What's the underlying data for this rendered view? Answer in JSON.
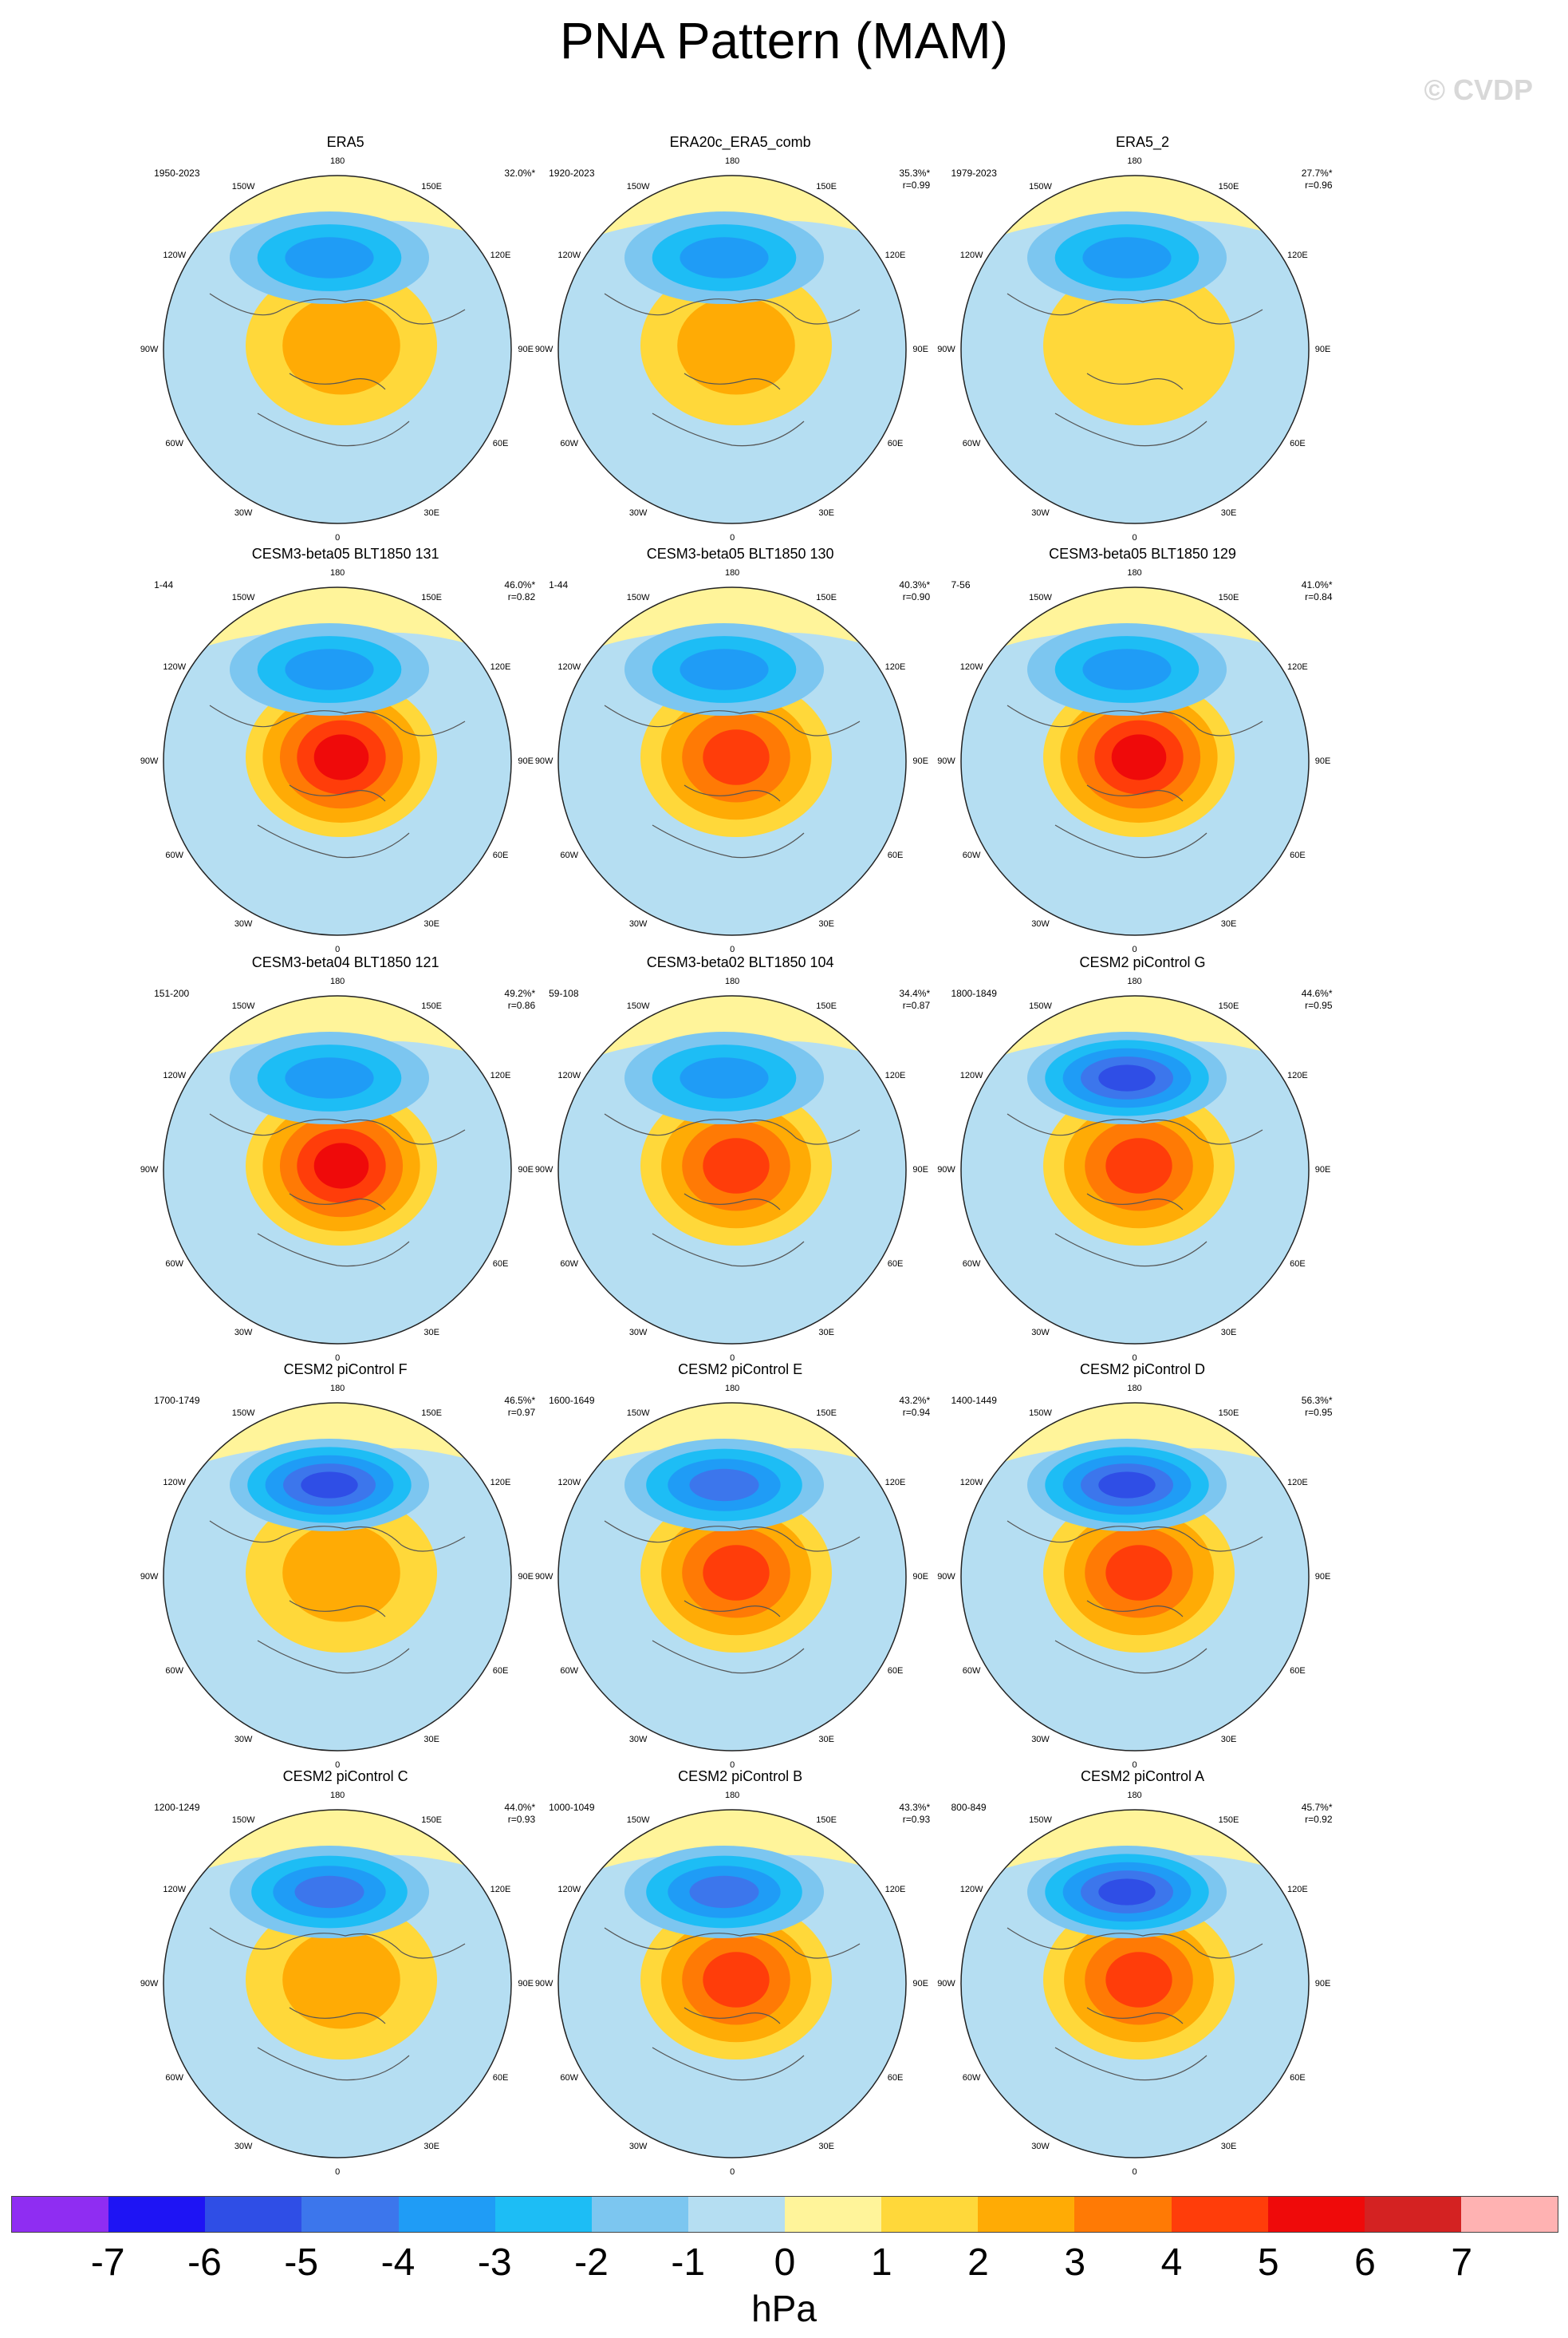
{
  "title": "PNA Pattern (MAM)",
  "watermark": "© CVDP",
  "chart_data": {
    "type": "heatmap",
    "title": "PNA Pattern (MAM)",
    "projection": "north polar stereographic",
    "longitude_labels": [
      "180",
      "150E",
      "120E",
      "90E",
      "60E",
      "30E",
      "0",
      "30W",
      "60W",
      "90W",
      "120W",
      "150W"
    ],
    "panels": [
      {
        "title": "ERA5",
        "period": "1950-2023",
        "pct": "32.0%*",
        "r": "",
        "neg_center": -3.8,
        "pos_center": 2.1
      },
      {
        "title": "ERA20c_ERA5_comb",
        "period": "1920-2023",
        "pct": "35.3%*",
        "r": "r=0.99",
        "neg_center": -3.6,
        "pos_center": 2.4
      },
      {
        "title": "ERA5_2",
        "period": "1979-2023",
        "pct": "27.7%*",
        "r": "r=0.96",
        "neg_center": -3.7,
        "pos_center": 1.8
      },
      {
        "title": "CESM3-beta05 BLT1850 131",
        "period": "1-44",
        "pct": "46.0%*",
        "r": "r=0.82",
        "neg_center": -3.9,
        "pos_center": 5.2
      },
      {
        "title": "CESM3-beta05 BLT1850 130",
        "period": "1-44",
        "pct": "40.3%*",
        "r": "r=0.90",
        "neg_center": -3.6,
        "pos_center": 4.4
      },
      {
        "title": "CESM3-beta05 BLT1850 129",
        "period": "7-56",
        "pct": "41.0%*",
        "r": "r=0.84",
        "neg_center": -3.5,
        "pos_center": 5.3
      },
      {
        "title": "CESM3-beta04 BLT1850 121",
        "period": "151-200",
        "pct": "49.2%*",
        "r": "r=0.86",
        "neg_center": -3.9,
        "pos_center": 5.6
      },
      {
        "title": "CESM3-beta02 BLT1850 104",
        "period": "59-108",
        "pct": "34.4%*",
        "r": "r=0.87",
        "neg_center": -3.4,
        "pos_center": 4.3
      },
      {
        "title": "CESM2 piControl G",
        "period": "1800-1849",
        "pct": "44.6%*",
        "r": "r=0.95",
        "neg_center": -5.2,
        "pos_center": 4.3
      },
      {
        "title": "CESM2 piControl F",
        "period": "1700-1749",
        "pct": "46.5%*",
        "r": "r=0.97",
        "neg_center": -5.2,
        "pos_center": 2.8
      },
      {
        "title": "CESM2 piControl E",
        "period": "1600-1649",
        "pct": "43.2%*",
        "r": "r=0.94",
        "neg_center": -4.6,
        "pos_center": 4.5
      },
      {
        "title": "CESM2 piControl D",
        "period": "1400-1449",
        "pct": "56.3%*",
        "r": "r=0.95",
        "neg_center": -5.8,
        "pos_center": 4.2
      },
      {
        "title": "CESM2 piControl C",
        "period": "1200-1249",
        "pct": "44.0%*",
        "r": "r=0.93",
        "neg_center": -4.4,
        "pos_center": 2.7
      },
      {
        "title": "CESM2 piControl B",
        "period": "1000-1049",
        "pct": "43.3%*",
        "r": "r=0.93",
        "neg_center": -4.3,
        "pos_center": 4.1
      },
      {
        "title": "CESM2 piControl A",
        "period": "800-849",
        "pct": "45.7%*",
        "r": "r=0.92",
        "neg_center": -5.1,
        "pos_center": 4.3
      }
    ],
    "colorbar": {
      "levels": [
        -7,
        -6,
        -5,
        -4,
        -3,
        -2,
        -1,
        0,
        1,
        2,
        3,
        4,
        5,
        6,
        7
      ],
      "tick_labels": [
        "-7",
        "-6",
        "-5",
        "-4",
        "-3",
        "-2",
        "-1",
        "0",
        "1",
        "2",
        "3",
        "4",
        "5",
        "6",
        "7"
      ],
      "colors": [
        "#8f2df2",
        "#1e14f4",
        "#2f4ee6",
        "#3c76ec",
        "#1f9cf6",
        "#1dbdf5",
        "#7cc6f0",
        "#b5def2",
        "#fff49a",
        "#ffd83a",
        "#ffab05",
        "#ff7a05",
        "#ff3d0a",
        "#ef0a0a",
        "#d42222",
        "#ffb2b2"
      ],
      "unit": "hPa"
    }
  }
}
